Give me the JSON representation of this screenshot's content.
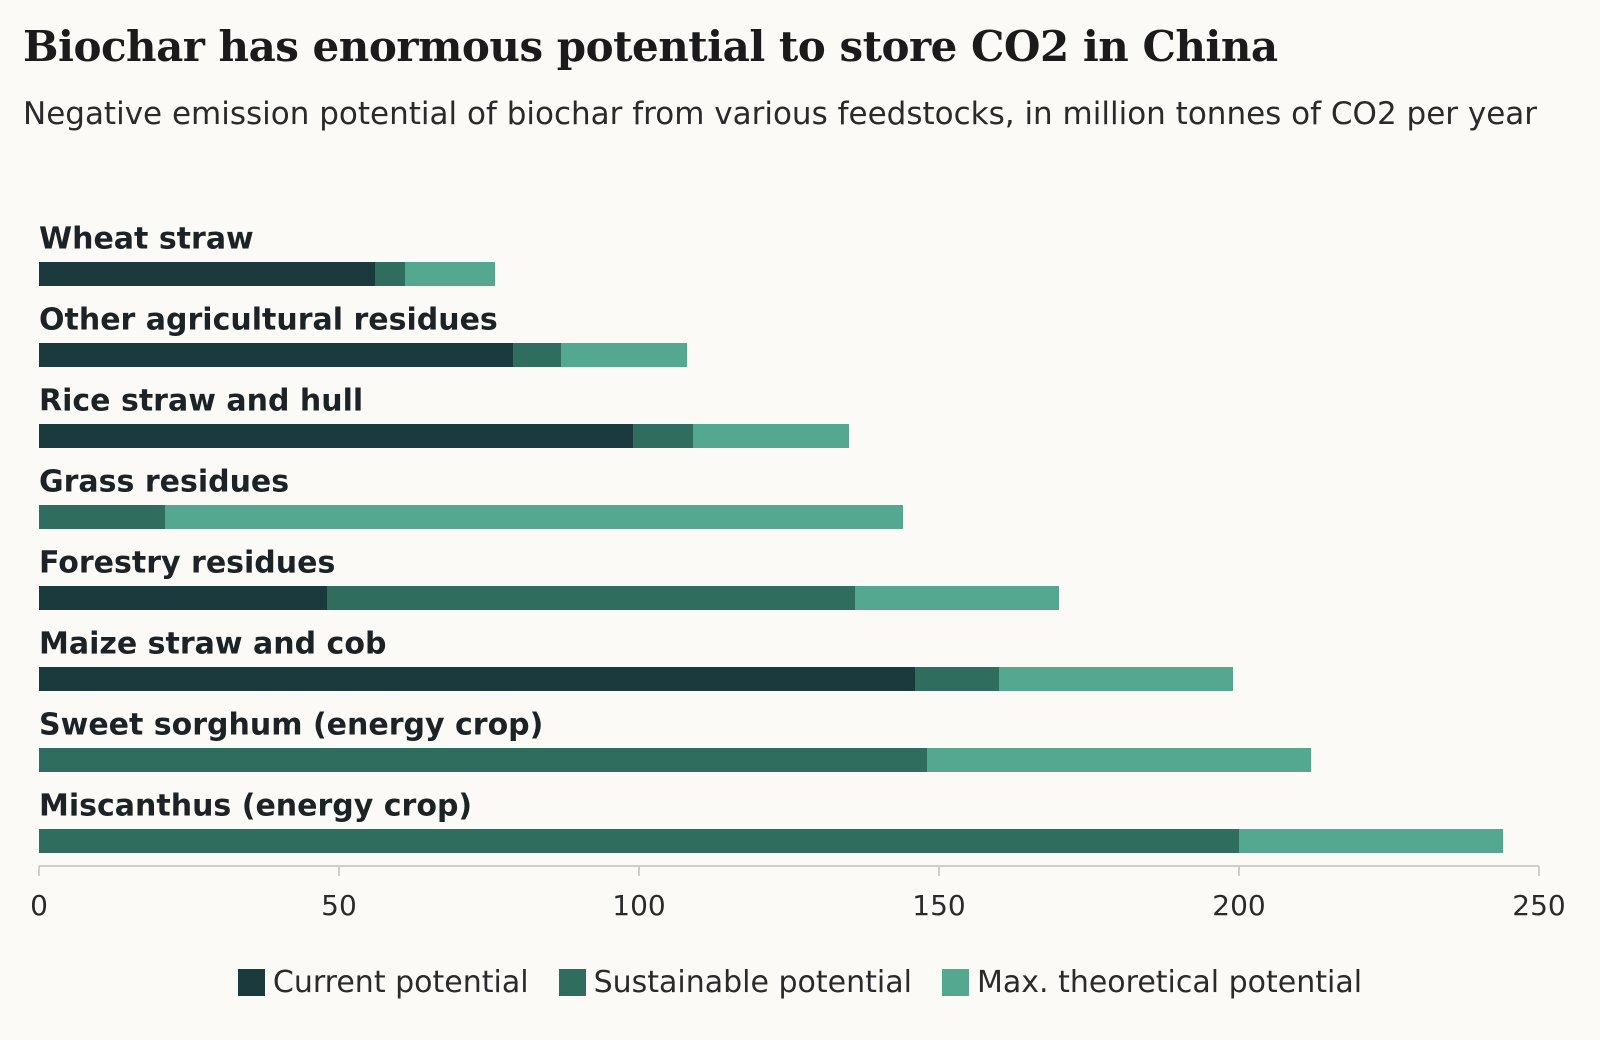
{
  "chart_data": {
    "type": "stacked-bar-horizontal",
    "title": "Biochar has enormous potential to store CO2 in China",
    "subtitle": "Negative emission potential of biochar from various feedstocks, in million tonnes of CO2 per year",
    "categories": [
      "Wheat straw",
      "Other agricultural residues",
      "Rice straw and hull",
      "Grass residues",
      "Forestry residues",
      "Maize straw and cob",
      "Sweet sorghum (energy crop)",
      "Miscanthus (energy crop)"
    ],
    "series": [
      {
        "name": "Current potential",
        "color": "#1a3a3d",
        "values": [
          56,
          79,
          99,
          0,
          48,
          146,
          0,
          0
        ]
      },
      {
        "name": "Sustainable potential",
        "color": "#2f6e5e",
        "values": [
          5,
          8,
          10,
          21,
          88,
          14,
          148,
          200
        ]
      },
      {
        "name": "Max. theoretical potential",
        "color": "#53a88f",
        "values": [
          15,
          21,
          26,
          123,
          34,
          39,
          64,
          44
        ]
      }
    ],
    "xlim": [
      0,
      250
    ],
    "xticks": [
      0,
      50,
      100,
      150,
      200,
      250
    ],
    "legend": "bottom"
  }
}
